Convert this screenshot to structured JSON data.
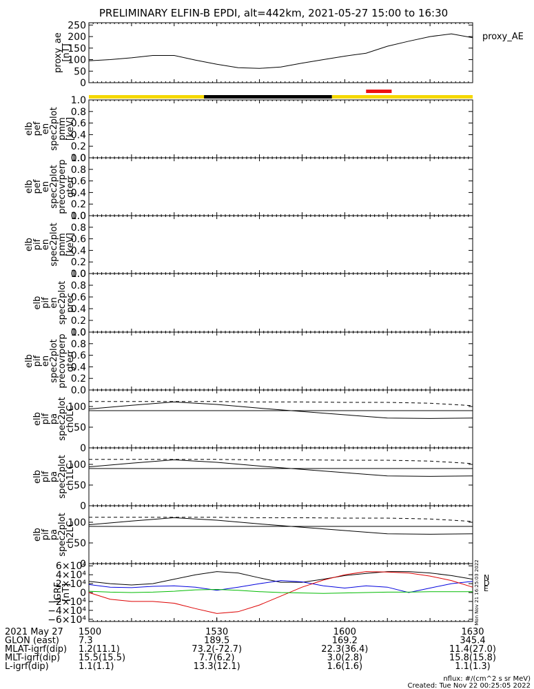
{
  "title": "PRELIMINARY ELFIN-B EPDI, alt=442km, 2021-05-27 15:00 to 16:30",
  "chart_data": [
    {
      "type": "line",
      "id": "proxy_ae",
      "ylabel": [
        "proxy_ae",
        "[nT]"
      ],
      "legend": "proxy_AE",
      "ylim": [
        0,
        260
      ],
      "yticks": [
        "0",
        "50",
        "100",
        "150",
        "200",
        "250"
      ],
      "ytick_values": [
        0,
        50,
        100,
        150,
        200,
        250
      ],
      "x_minutes": [
        0,
        5,
        10,
        15,
        20,
        25,
        30,
        35,
        40,
        45,
        50,
        55,
        60,
        65,
        70,
        75,
        80,
        85,
        90
      ],
      "values": [
        95,
        100,
        108,
        118,
        118,
        98,
        80,
        65,
        62,
        68,
        85,
        100,
        115,
        128,
        158,
        180,
        200,
        212,
        195
      ]
    },
    {
      "type": "bar",
      "id": "status-bar",
      "segments": [
        {
          "from_min": 0,
          "to_min": 27,
          "color": "#f5d800"
        },
        {
          "from_min": 27,
          "to_min": 57,
          "color": "#000000"
        },
        {
          "from_min": 57,
          "to_min": 90,
          "color": "#f5d800"
        }
      ],
      "marker": {
        "from_min": 65,
        "to_min": 71,
        "color": "#ee1111"
      }
    },
    {
      "type": "line",
      "id": "pef-pmm",
      "ylabel": [
        "elb",
        "pef",
        "en",
        "spec2plot",
        "pmm",
        "[keV]"
      ],
      "ylim": [
        0,
        1
      ],
      "yticks": [
        "0.0",
        "0.2",
        "0.4",
        "0.6",
        "0.8",
        "1.0"
      ],
      "ytick_values": [
        0,
        0.2,
        0.4,
        0.6,
        0.8,
        1.0
      ]
    },
    {
      "type": "line",
      "id": "pef-precovrperp",
      "ylabel": [
        "elb",
        "pef",
        "en",
        "spec2plot",
        "precovrperp",
        "gterr"
      ],
      "ylim": [
        0,
        1
      ],
      "yticks": [
        "0.0",
        "0.2",
        "0.4",
        "0.6",
        "0.8",
        "1.0"
      ],
      "ytick_values": [
        0,
        0.2,
        0.4,
        0.6,
        0.8,
        1.0
      ]
    },
    {
      "type": "line",
      "id": "pif-pmm",
      "ylabel": [
        "elb",
        "pif",
        "en",
        "spec2plot",
        "pmm",
        "[keV]"
      ],
      "ylim": [
        0,
        1
      ],
      "yticks": [
        "0.0",
        "0.2",
        "0.4",
        "0.6",
        "0.8",
        "1.0"
      ],
      "ytick_values": [
        0,
        0.2,
        0.4,
        0.6,
        0.8,
        1.0
      ]
    },
    {
      "type": "line",
      "id": "pif-prec",
      "ylabel": [
        "elb",
        "pif",
        "en",
        "spec2plot",
        "prec"
      ],
      "ylim": [
        0,
        1
      ],
      "yticks": [
        "0.0",
        "0.2",
        "0.4",
        "0.6",
        "0.8",
        "1.0"
      ],
      "ytick_values": [
        0,
        0.2,
        0.4,
        0.6,
        0.8,
        1.0
      ]
    },
    {
      "type": "line",
      "id": "pif-precovrperp",
      "ylabel": [
        "elb",
        "pif",
        "en",
        "spec2plot",
        "precovrperp",
        "gterr"
      ],
      "ylim": [
        0,
        1
      ],
      "yticks": [
        "0.0",
        "0.2",
        "0.4",
        "0.6",
        "0.8",
        "1.0"
      ],
      "ytick_values": [
        0,
        0.2,
        0.4,
        0.6,
        0.8,
        1.0
      ]
    },
    {
      "type": "line",
      "id": "ch0LC",
      "ylabel": [
        "elb",
        "pif",
        "pa",
        "spec2plot",
        "ch0LC"
      ],
      "ylim": [
        0,
        140
      ],
      "yticks": [
        "0",
        "50",
        "100"
      ],
      "ytick_values": [
        0,
        50,
        100
      ],
      "x_minutes": [
        0,
        10,
        20,
        30,
        40,
        50,
        60,
        70,
        80,
        90
      ],
      "series": [
        {
          "name": "solid-curve",
          "style": "solid",
          "values": [
            94,
            103,
            111,
            105,
            96,
            88,
            80,
            72,
            71,
            72
          ]
        },
        {
          "name": "solid-flat",
          "style": "solid",
          "values": [
            90,
            90,
            90,
            90,
            90,
            90,
            90,
            90,
            90,
            90
          ]
        },
        {
          "name": "dashed",
          "style": "dashed",
          "values": [
            112,
            112,
            112,
            112,
            111,
            111,
            110,
            110,
            108,
            102
          ]
        }
      ]
    },
    {
      "type": "line",
      "id": "ch1LC",
      "ylabel": [
        "elb",
        "pif",
        "pa",
        "spec2plot",
        "ch1LC"
      ],
      "ylim": [
        0,
        140
      ],
      "yticks": [
        "0",
        "50",
        "100"
      ],
      "ytick_values": [
        0,
        50,
        100
      ],
      "x_minutes": [
        0,
        10,
        20,
        30,
        40,
        50,
        60,
        70,
        80,
        90
      ],
      "series": [
        {
          "name": "solid-curve",
          "style": "solid",
          "values": [
            94,
            103,
            111,
            105,
            96,
            88,
            80,
            72,
            71,
            72
          ]
        },
        {
          "name": "solid-flat",
          "style": "solid",
          "values": [
            90,
            90,
            90,
            90,
            90,
            90,
            90,
            90,
            90,
            90
          ]
        },
        {
          "name": "dashed",
          "style": "dashed",
          "values": [
            112,
            112,
            112,
            112,
            111,
            111,
            110,
            110,
            108,
            102
          ]
        }
      ]
    },
    {
      "type": "line",
      "id": "ch2LC",
      "ylabel": [
        "elb",
        "pif",
        "pa",
        "spec2plot",
        "ch2LC"
      ],
      "ylim": [
        0,
        140
      ],
      "yticks": [
        "0",
        "50",
        "100"
      ],
      "ytick_values": [
        0,
        50,
        100
      ],
      "x_minutes": [
        0,
        10,
        20,
        30,
        40,
        50,
        60,
        70,
        80,
        90
      ],
      "series": [
        {
          "name": "solid-curve",
          "style": "solid",
          "values": [
            94,
            103,
            111,
            105,
            96,
            88,
            80,
            72,
            71,
            72
          ]
        },
        {
          "name": "solid-flat",
          "style": "solid",
          "values": [
            90,
            90,
            90,
            90,
            90,
            90,
            90,
            90,
            90,
            90
          ]
        },
        {
          "name": "dashed",
          "style": "dashed",
          "values": [
            112,
            112,
            112,
            112,
            111,
            111,
            110,
            110,
            108,
            102
          ]
        }
      ]
    },
    {
      "type": "line",
      "id": "igrf",
      "ylabel": [
        "IGRF",
        "[nT]"
      ],
      "ylim": [
        -65000,
        65000
      ],
      "yticks": [
        "−6×10⁴",
        "−4×10⁴",
        "−2×10⁴",
        "0",
        "2×10⁴",
        "4×10⁴",
        "6×10⁴"
      ],
      "ytick_values": [
        -60000,
        -40000,
        -20000,
        0,
        20000,
        40000,
        60000
      ],
      "side_label": "Mon Nov 21 16:25:03 2022",
      "legend": [
        {
          "label": "N",
          "color": "#0000dd"
        },
        {
          "label": "D",
          "color": "#dd0000"
        },
        {
          "label": "E",
          "color": "#00bb00"
        }
      ],
      "x_minutes": [
        0,
        5,
        10,
        15,
        20,
        25,
        30,
        35,
        40,
        45,
        50,
        55,
        60,
        65,
        70,
        75,
        80,
        85,
        90
      ],
      "series": [
        {
          "name": "total",
          "color": "#000000",
          "values": [
            25000,
            20000,
            17000,
            20000,
            30000,
            40000,
            47000,
            44000,
            33000,
            23000,
            23000,
            30000,
            38000,
            43000,
            47000,
            47000,
            44000,
            38000,
            30000
          ]
        },
        {
          "name": "N",
          "color": "#0000dd",
          "values": [
            18000,
            12000,
            11000,
            14000,
            15000,
            12000,
            5000,
            12000,
            20000,
            27000,
            24000,
            15000,
            10000,
            15000,
            12000,
            0,
            10000,
            20000,
            25000
          ]
        },
        {
          "name": "D",
          "color": "#dd0000",
          "values": [
            0,
            -15000,
            -20000,
            -20000,
            -24000,
            -36000,
            -47000,
            -43000,
            -28000,
            -8000,
            12000,
            28000,
            40000,
            47000,
            46000,
            44000,
            37000,
            27000,
            12000
          ]
        },
        {
          "name": "E",
          "color": "#00bb00",
          "values": [
            3000,
            1000,
            0,
            1000,
            3000,
            6000,
            7000,
            5000,
            2000,
            0,
            -1000,
            -2000,
            -1000,
            0,
            1000,
            1000,
            2000,
            2000,
            2000
          ]
        }
      ]
    }
  ],
  "xaxis": {
    "ticks": [
      {
        "minute": 0,
        "label": "1500"
      },
      {
        "minute": 30,
        "label": "1530"
      },
      {
        "minute": 60,
        "label": "1600"
      },
      {
        "minute": 90,
        "label": "1630"
      }
    ]
  },
  "ephemeris": [
    {
      "name": "2021 May 27",
      "values": [
        "1500",
        "1530",
        "1600",
        "1630"
      ]
    },
    {
      "name": "GLON (east)",
      "values": [
        "7.3",
        "189.5",
        "169.2",
        "345.4"
      ]
    },
    {
      "name": "MLAT-igrf(dip)",
      "values": [
        "1.2(11.1)",
        "73.2(-72.7)",
        "22.3(36.4)",
        "11.4(27.0)"
      ]
    },
    {
      "name": "MLT-igrf(dip)",
      "values": [
        "15.5(15.5)",
        "7.7(6.2)",
        "3.0(2.8)",
        "15.8(15.8)"
      ]
    },
    {
      "name": "L-igrf(dip)",
      "values": [
        "1.1(1.1)",
        "13.3(12.1)",
        "1.6(1.6)",
        "1.1(1.3)"
      ]
    }
  ],
  "footer": {
    "units": "nflux: #/(cm^2 s sr MeV)",
    "created": "Created: Tue Nov 22 00:25:05 2022"
  }
}
